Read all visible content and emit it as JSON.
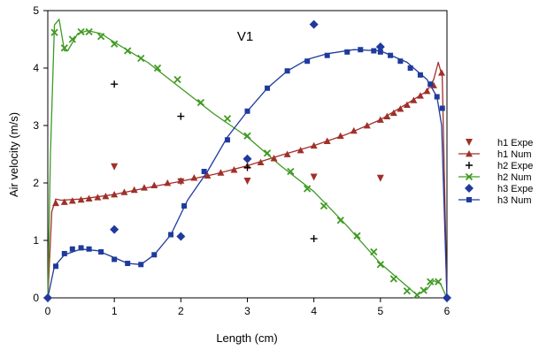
{
  "chart_data": {
    "type": "scatter",
    "title": "V1",
    "xlabel": "Length (cm)",
    "ylabel": "Air velocity (m/s)",
    "xlim": [
      0,
      6
    ],
    "ylim": [
      0,
      5
    ],
    "xticks": [
      "0",
      "1",
      "2",
      "3",
      "4",
      "5",
      "6"
    ],
    "yticks": [
      "0",
      "1",
      "2",
      "3",
      "4",
      "5"
    ],
    "grid": false,
    "legend_position": "right",
    "series": [
      {
        "name": "h1 Expe",
        "kind": "markers",
        "marker": "triangle-down",
        "color": "#a0302a",
        "x": [
          1,
          2,
          3,
          4,
          5
        ],
        "y": [
          2.28,
          2.02,
          2.03,
          2.1,
          2.08
        ]
      },
      {
        "name": "h1 Num",
        "kind": "line+markers",
        "marker": "triangle-up",
        "color": "#a0302a",
        "line_points": [
          [
            0,
            0
          ],
          [
            0.06,
            1.5
          ],
          [
            0.12,
            1.72
          ],
          [
            0.2,
            1.7
          ],
          [
            0.5,
            1.72
          ],
          [
            1,
            1.8
          ],
          [
            1.5,
            1.92
          ],
          [
            2,
            2.03
          ],
          [
            2.5,
            2.15
          ],
          [
            3,
            2.3
          ],
          [
            3.5,
            2.48
          ],
          [
            4,
            2.65
          ],
          [
            4.5,
            2.85
          ],
          [
            5,
            3.1
          ],
          [
            5.4,
            3.38
          ],
          [
            5.7,
            3.6
          ],
          [
            5.8,
            3.8
          ],
          [
            5.87,
            4.1
          ],
          [
            5.93,
            3.85
          ],
          [
            6,
            0
          ]
        ],
        "x": [
          0.12,
          0.25,
          0.37,
          0.5,
          0.62,
          0.75,
          0.87,
          1.0,
          1.15,
          1.3,
          1.45,
          1.6,
          1.8,
          2.0,
          2.2,
          2.4,
          2.6,
          2.8,
          3.0,
          3.2,
          3.4,
          3.6,
          3.8,
          4.0,
          4.2,
          4.4,
          4.6,
          4.8,
          5.0,
          5.1,
          5.2,
          5.3,
          5.4,
          5.5,
          5.6,
          5.7,
          5.8,
          5.92
        ],
        "y": [
          1.65,
          1.67,
          1.69,
          1.71,
          1.73,
          1.75,
          1.77,
          1.8,
          1.84,
          1.88,
          1.92,
          1.96,
          2.0,
          2.04,
          2.09,
          2.13,
          2.18,
          2.23,
          2.3,
          2.36,
          2.43,
          2.5,
          2.57,
          2.65,
          2.73,
          2.82,
          2.91,
          3.0,
          3.1,
          3.16,
          3.22,
          3.29,
          3.36,
          3.44,
          3.52,
          3.6,
          3.7,
          3.92
        ]
      },
      {
        "name": "h2 Expe",
        "kind": "markers",
        "marker": "plus",
        "color": "#000000",
        "x": [
          1,
          2,
          3,
          4
        ],
        "y": [
          3.72,
          3.16,
          2.27,
          1.03
        ]
      },
      {
        "name": "h2 Num",
        "kind": "line+markers",
        "marker": "x",
        "color": "#3f9a22",
        "line_points": [
          [
            0,
            0
          ],
          [
            0.04,
            2.5
          ],
          [
            0.1,
            4.75
          ],
          [
            0.17,
            4.85
          ],
          [
            0.25,
            4.3
          ],
          [
            0.3,
            4.3
          ],
          [
            0.45,
            4.6
          ],
          [
            0.6,
            4.65
          ],
          [
            0.8,
            4.6
          ],
          [
            1,
            4.45
          ],
          [
            1.5,
            4.1
          ],
          [
            2,
            3.65
          ],
          [
            2.5,
            3.2
          ],
          [
            3,
            2.8
          ],
          [
            3.5,
            2.3
          ],
          [
            4,
            1.85
          ],
          [
            4.5,
            1.25
          ],
          [
            5,
            0.6
          ],
          [
            5.3,
            0.3
          ],
          [
            5.55,
            0.05
          ],
          [
            5.7,
            0.15
          ],
          [
            5.8,
            0.3
          ],
          [
            5.9,
            0.25
          ],
          [
            6,
            0
          ]
        ],
        "x": [
          0.1,
          0.25,
          0.37,
          0.5,
          0.62,
          0.8,
          1.0,
          1.2,
          1.4,
          1.65,
          1.95,
          2.3,
          2.7,
          3.0,
          3.3,
          3.65,
          3.9,
          4.15,
          4.4,
          4.65,
          4.9,
          5.0,
          5.2,
          5.4,
          5.55,
          5.65,
          5.75,
          5.87
        ],
        "y": [
          4.62,
          4.35,
          4.5,
          4.63,
          4.63,
          4.55,
          4.42,
          4.3,
          4.17,
          4.0,
          3.8,
          3.4,
          3.12,
          2.82,
          2.52,
          2.2,
          1.9,
          1.6,
          1.35,
          1.08,
          0.8,
          0.58,
          0.33,
          0.12,
          0.05,
          0.13,
          0.28,
          0.28
        ]
      },
      {
        "name": "h3 Expe",
        "kind": "markers",
        "marker": "diamond",
        "color": "#1f3a9e",
        "x": [
          1,
          2,
          3,
          4,
          5
        ],
        "y": [
          1.19,
          1.07,
          2.42,
          4.76,
          4.37
        ]
      },
      {
        "name": "h3 Num",
        "kind": "line+markers",
        "marker": "square",
        "color": "#1f3a9e",
        "line_points": [
          [
            0,
            0
          ],
          [
            0.1,
            0.55
          ],
          [
            0.25,
            0.75
          ],
          [
            0.5,
            0.85
          ],
          [
            0.75,
            0.82
          ],
          [
            1,
            0.7
          ],
          [
            1.2,
            0.6
          ],
          [
            1.4,
            0.58
          ],
          [
            1.6,
            0.75
          ],
          [
            1.85,
            1.1
          ],
          [
            2.1,
            1.7
          ],
          [
            2.4,
            2.2
          ],
          [
            2.7,
            2.8
          ],
          [
            3,
            3.25
          ],
          [
            3.3,
            3.65
          ],
          [
            3.6,
            3.95
          ],
          [
            3.9,
            4.15
          ],
          [
            4.2,
            4.25
          ],
          [
            4.6,
            4.32
          ],
          [
            5,
            4.3
          ],
          [
            5.4,
            4.1
          ],
          [
            5.7,
            3.8
          ],
          [
            5.85,
            3.5
          ],
          [
            5.92,
            3.0
          ],
          [
            6,
            0
          ]
        ],
        "x": [
          0.12,
          0.25,
          0.37,
          0.5,
          0.62,
          0.8,
          1.0,
          1.2,
          1.4,
          1.6,
          1.85,
          2.05,
          2.35,
          2.7,
          3.0,
          3.3,
          3.6,
          3.9,
          4.2,
          4.5,
          4.7,
          4.9,
          5.0,
          5.15,
          5.3,
          5.45,
          5.6,
          5.75,
          5.85,
          5.93
        ],
        "y": [
          0.55,
          0.77,
          0.85,
          0.87,
          0.85,
          0.8,
          0.67,
          0.6,
          0.58,
          0.75,
          1.1,
          1.6,
          2.2,
          2.75,
          3.25,
          3.65,
          3.95,
          4.12,
          4.22,
          4.28,
          4.32,
          4.3,
          4.28,
          4.22,
          4.12,
          4.0,
          3.88,
          3.72,
          3.5,
          3.3
        ]
      }
    ]
  }
}
